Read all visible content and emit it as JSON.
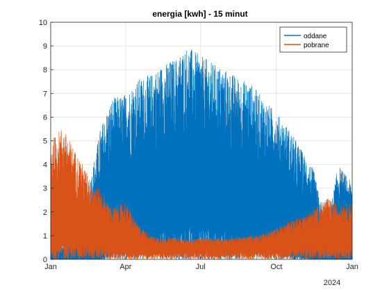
{
  "chart_data": {
    "type": "line",
    "title": "energia [kwh] - 15 minut",
    "xlabel": "",
    "ylabel": "",
    "year_label": "2024",
    "x_axis": {
      "type": "date",
      "range": [
        "2024-01-01",
        "2025-01-01"
      ],
      "ticks": [
        {
          "date": "2024-01-01",
          "label": "Jan"
        },
        {
          "date": "2024-04-01",
          "label": "Apr"
        },
        {
          "date": "2024-07-01",
          "label": "Jul"
        },
        {
          "date": "2024-10-01",
          "label": "Oct"
        },
        {
          "date": "2025-01-01",
          "label": "Jan"
        }
      ]
    },
    "y_axis": {
      "range": [
        0,
        10
      ],
      "ticks": [
        0,
        1,
        2,
        3,
        4,
        5,
        6,
        7,
        8,
        9,
        10
      ]
    },
    "grid": true,
    "legend_position": "top-right",
    "series": [
      {
        "name": "oddane",
        "color": "#0072BD",
        "envelope": {
          "description_x": "date",
          "x": [
            "2024-01-01",
            "2024-01-15",
            "2024-02-01",
            "2024-02-15",
            "2024-03-01",
            "2024-03-15",
            "2024-04-01",
            "2024-04-15",
            "2024-05-01",
            "2024-05-15",
            "2024-06-01",
            "2024-06-15",
            "2024-07-01",
            "2024-07-15",
            "2024-08-01",
            "2024-08-15",
            "2024-09-01",
            "2024-09-15",
            "2024-10-01",
            "2024-10-15",
            "2024-11-01",
            "2024-11-15",
            "2024-12-01",
            "2024-12-15",
            "2025-01-01"
          ],
          "peak": [
            0.3,
            0.6,
            1.2,
            2.8,
            5.5,
            6.8,
            7.0,
            7.6,
            7.8,
            8.2,
            8.5,
            9.0,
            8.6,
            8.3,
            8.0,
            7.7,
            7.4,
            6.8,
            6.2,
            5.6,
            4.6,
            3.8,
            1.2,
            4.0,
            3.2
          ],
          "floor": [
            0,
            0,
            0,
            0,
            0,
            0.5,
            0.6,
            0.9,
            1.1,
            1.3,
            1.4,
            1.5,
            1.5,
            1.4,
            1.2,
            1.1,
            0.9,
            0.7,
            0.6,
            0.3,
            0.1,
            0,
            0,
            0,
            0
          ]
        }
      },
      {
        "name": "pobrane",
        "color": "#D95319",
        "envelope": {
          "description_x": "date",
          "x": [
            "2024-01-01",
            "2024-01-15",
            "2024-02-01",
            "2024-02-15",
            "2024-03-01",
            "2024-03-15",
            "2024-04-01",
            "2024-04-15",
            "2024-05-01",
            "2024-05-15",
            "2024-06-01",
            "2024-06-15",
            "2024-07-01",
            "2024-07-15",
            "2024-08-01",
            "2024-08-15",
            "2024-09-01",
            "2024-09-15",
            "2024-10-01",
            "2024-10-15",
            "2024-11-01",
            "2024-11-15",
            "2024-12-01",
            "2024-12-15",
            "2025-01-01"
          ],
          "peak": [
            5.0,
            5.6,
            4.5,
            3.6,
            2.9,
            2.2,
            2.4,
            1.5,
            1.0,
            0.9,
            0.9,
            0.8,
            0.9,
            0.9,
            0.9,
            0.9,
            1.0,
            1.1,
            1.3,
            1.6,
            1.8,
            2.1,
            2.6,
            2.3,
            2.4
          ],
          "floor": [
            0.4,
            0.8,
            0.6,
            0.6,
            0.5,
            0.4,
            0.3,
            0.3,
            0.3,
            0.3,
            0.3,
            0.3,
            0.3,
            0.3,
            0.3,
            0.3,
            0.3,
            0.3,
            0.3,
            0.4,
            0.5,
            0.5,
            0.5,
            0.5,
            0.5
          ]
        }
      }
    ]
  }
}
